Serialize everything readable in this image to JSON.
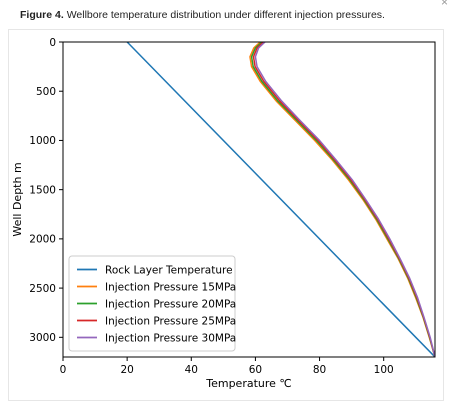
{
  "caption": {
    "label": "Figure 4.",
    "text": "Wellbore temperature distribution under different injection pressures."
  },
  "close_glyph": "×",
  "chart_data": {
    "type": "line",
    "title": "",
    "xlabel": "Temperature ℃",
    "ylabel": "Well Depth m",
    "xlim": [
      0,
      116
    ],
    "ylim": [
      3200,
      0
    ],
    "y_inverted": true,
    "grid": false,
    "legend_position": "lower-left",
    "xticks": [
      0,
      20,
      40,
      60,
      80,
      100
    ],
    "yticks": [
      0,
      500,
      1000,
      1500,
      2000,
      2500,
      3000
    ],
    "series": [
      {
        "name": "Rock Layer Temperature",
        "color": "#1f77b4",
        "points": [
          [
            20,
            0
          ],
          [
            116,
            3200
          ]
        ]
      },
      {
        "name": "Injection Pressure 15MPa",
        "color": "#ff7f0e",
        "points": [
          [
            61.5,
            0
          ],
          [
            59.5,
            60
          ],
          [
            58.3,
            150
          ],
          [
            58.8,
            250
          ],
          [
            61.5,
            400
          ],
          [
            66.5,
            600
          ],
          [
            72.5,
            800
          ],
          [
            78.5,
            1000
          ],
          [
            84,
            1200
          ],
          [
            89,
            1400
          ],
          [
            93.5,
            1600
          ],
          [
            97.5,
            1800
          ],
          [
            101,
            2000
          ],
          [
            104.5,
            2200
          ],
          [
            107.5,
            2400
          ],
          [
            110,
            2600
          ],
          [
            112.3,
            2800
          ],
          [
            114.2,
            3000
          ],
          [
            116,
            3200
          ]
        ]
      },
      {
        "name": "Injection Pressure 20MPa",
        "color": "#2ca02c",
        "points": [
          [
            62,
            0
          ],
          [
            60,
            60
          ],
          [
            58.8,
            150
          ],
          [
            59.3,
            250
          ],
          [
            62,
            400
          ],
          [
            67,
            600
          ],
          [
            73,
            800
          ],
          [
            79,
            1000
          ],
          [
            84.4,
            1200
          ],
          [
            89.4,
            1400
          ],
          [
            93.8,
            1600
          ],
          [
            97.8,
            1800
          ],
          [
            101.3,
            2000
          ],
          [
            104.7,
            2200
          ],
          [
            107.7,
            2400
          ],
          [
            110.2,
            2600
          ],
          [
            112.4,
            2800
          ],
          [
            114.3,
            3000
          ],
          [
            116,
            3200
          ]
        ]
      },
      {
        "name": "Injection Pressure 25MPa",
        "color": "#d62728",
        "points": [
          [
            62.5,
            0
          ],
          [
            60.5,
            60
          ],
          [
            59.4,
            150
          ],
          [
            59.9,
            250
          ],
          [
            62.6,
            400
          ],
          [
            67.6,
            600
          ],
          [
            73.5,
            800
          ],
          [
            79.5,
            1000
          ],
          [
            84.8,
            1200
          ],
          [
            89.8,
            1400
          ],
          [
            94.1,
            1600
          ],
          [
            98.1,
            1800
          ],
          [
            101.6,
            2000
          ],
          [
            104.9,
            2200
          ],
          [
            107.9,
            2400
          ],
          [
            110.4,
            2600
          ],
          [
            112.5,
            2800
          ],
          [
            114.4,
            3000
          ],
          [
            116,
            3200
          ]
        ]
      },
      {
        "name": "Injection Pressure 30MPa",
        "color": "#9467bd",
        "points": [
          [
            63,
            0
          ],
          [
            61,
            60
          ],
          [
            60,
            150
          ],
          [
            60.5,
            250
          ],
          [
            63.2,
            400
          ],
          [
            68.2,
            600
          ],
          [
            74,
            800
          ],
          [
            80,
            1000
          ],
          [
            85.2,
            1200
          ],
          [
            90.2,
            1400
          ],
          [
            94.4,
            1600
          ],
          [
            98.4,
            1800
          ],
          [
            101.9,
            2000
          ],
          [
            105.1,
            2200
          ],
          [
            108.1,
            2400
          ],
          [
            110.6,
            2600
          ],
          [
            112.6,
            2800
          ],
          [
            114.5,
            3000
          ],
          [
            116,
            3200
          ]
        ]
      }
    ]
  }
}
